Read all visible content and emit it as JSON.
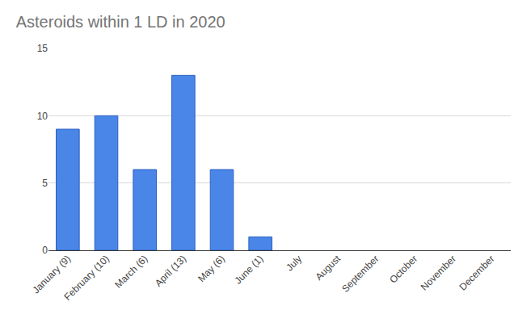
{
  "chart_data": {
    "type": "bar",
    "title": "Asteroids within 1 LD in 2020",
    "categories": [
      "January (9)",
      "February (10)",
      "March (6)",
      "April (13)",
      "May (6)",
      "June (1)",
      "July",
      "August",
      "September",
      "October",
      "November",
      "December"
    ],
    "values": [
      9,
      10,
      6,
      13,
      6,
      1,
      null,
      null,
      null,
      null,
      null,
      null
    ],
    "color": "#4a86e8",
    "ylim": [
      0,
      15
    ],
    "yticks": [
      0,
      5,
      10,
      15
    ],
    "grid": true
  }
}
